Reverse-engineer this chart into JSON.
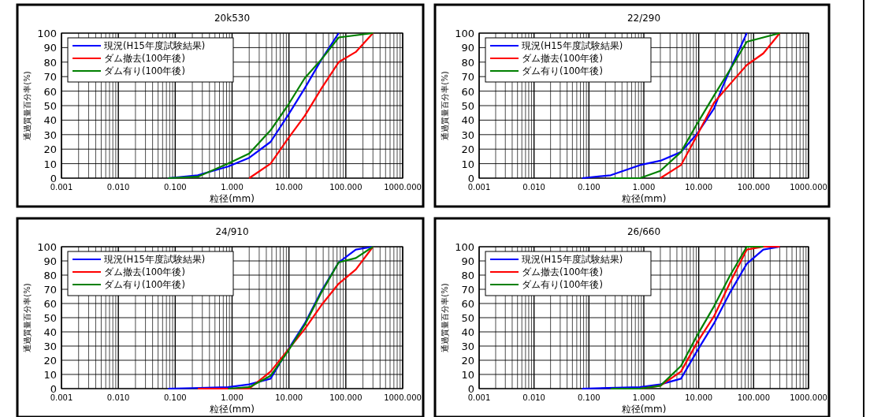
{
  "chart_data": [
    {
      "type": "line",
      "title": "20k530",
      "xlabel": "粒径(mm)",
      "ylabel": "通過質量百分率(%)",
      "log": "x",
      "grid": true,
      "legend": "top left",
      "xlim": [
        0.001,
        1000
      ],
      "xticks": [
        {
          "value": 0.001,
          "label": "0.001"
        },
        {
          "value": 0.01,
          "label": "0.010"
        },
        {
          "value": 0.1,
          "label": "0.100"
        },
        {
          "value": 1,
          "label": "1.000"
        },
        {
          "value": 10,
          "label": "10.000"
        },
        {
          "value": 100,
          "label": "100.000"
        },
        {
          "value": 1000,
          "label": "1000.000"
        }
      ],
      "ylim": [
        0,
        100
      ],
      "yticks": [
        0,
        10,
        20,
        30,
        40,
        50,
        60,
        70,
        80,
        90,
        100
      ],
      "series": [
        {
          "name": "現況(H15年度試験結果)",
          "color": "#0000ff",
          "x": [
            0.075,
            0.25,
            0.85,
            2,
            4.75,
            9.5,
            19,
            37.5,
            75
          ],
          "values": [
            0,
            2,
            8,
            14,
            25,
            43,
            62,
            82,
            100
          ]
        },
        {
          "name": "ダム撤去(100年後)",
          "color": "#ff0000",
          "x": [
            2,
            4.75,
            9.5,
            19,
            37.5,
            75,
            150,
            300
          ],
          "values": [
            0,
            10,
            27,
            43,
            62,
            80,
            87,
            100
          ]
        },
        {
          "name": "ダム有り(100年後)",
          "color": "#008000",
          "x": [
            0.075,
            0.25,
            0.85,
            2,
            4.75,
            9.5,
            19,
            37.5,
            75,
            300
          ],
          "values": [
            0,
            1,
            10,
            17,
            33,
            50,
            69,
            82,
            97,
            100
          ]
        }
      ]
    },
    {
      "type": "line",
      "title": "22/290",
      "xlabel": "粒径(mm)",
      "ylabel": "通過質量百分率(%)",
      "log": "x",
      "grid": true,
      "legend": "top left",
      "xlim": [
        0.001,
        1000
      ],
      "xticks": [
        {
          "value": 0.001,
          "label": "0.001"
        },
        {
          "value": 0.01,
          "label": "0.010"
        },
        {
          "value": 0.1,
          "label": "0.100"
        },
        {
          "value": 1,
          "label": "1.000"
        },
        {
          "value": 10,
          "label": "10.000"
        },
        {
          "value": 100,
          "label": "100.000"
        },
        {
          "value": 1000,
          "label": "1000.000"
        }
      ],
      "ylim": [
        0,
        100
      ],
      "yticks": [
        0,
        10,
        20,
        30,
        40,
        50,
        60,
        70,
        80,
        90,
        100
      ],
      "series": [
        {
          "name": "現況(H15年度試験結果)",
          "color": "#0000ff",
          "x": [
            0.075,
            0.25,
            0.85,
            2,
            4.75,
            9.5,
            19,
            26.5,
            37.5,
            75
          ],
          "values": [
            0,
            2,
            9,
            12,
            18,
            31,
            48,
            62,
            75,
            100
          ]
        },
        {
          "name": "ダム撤去(100年後)",
          "color": "#ff0000",
          "x": [
            2,
            4.75,
            9.5,
            19,
            37.5,
            75,
            150,
            300
          ],
          "values": [
            0,
            9,
            30,
            52,
            65,
            78,
            86,
            100
          ]
        },
        {
          "name": "ダム有り(100年後)",
          "color": "#008000",
          "x": [
            0.25,
            0.85,
            2,
            4.75,
            9.5,
            19,
            37.5,
            75,
            150,
            300
          ],
          "values": [
            0,
            0,
            5,
            18,
            38,
            57,
            75,
            94,
            97,
            100
          ]
        }
      ]
    },
    {
      "type": "line",
      "title": "24/910",
      "xlabel": "粒径(mm)",
      "ylabel": "通過質量百分率(%)",
      "log": "x",
      "grid": true,
      "legend": "top left",
      "xlim": [
        0.001,
        1000
      ],
      "xticks": [
        {
          "value": 0.001,
          "label": "0.001"
        },
        {
          "value": 0.01,
          "label": "0.010"
        },
        {
          "value": 0.1,
          "label": "0.100"
        },
        {
          "value": 1,
          "label": "1.000"
        },
        {
          "value": 10,
          "label": "10.000"
        },
        {
          "value": 100,
          "label": "100.000"
        },
        {
          "value": 1000,
          "label": "1000.000"
        }
      ],
      "ylim": [
        0,
        100
      ],
      "yticks": [
        0,
        10,
        20,
        30,
        40,
        50,
        60,
        70,
        80,
        90,
        100
      ],
      "series": [
        {
          "name": "現況(H15年度試験結果)",
          "color": "#0000ff",
          "x": [
            0.075,
            0.85,
            2,
            4.75,
            9.5,
            19,
            37.5,
            75,
            150,
            300
          ],
          "values": [
            0,
            1,
            3,
            7,
            27,
            46,
            69,
            89,
            98,
            100
          ]
        },
        {
          "name": "ダム撤去(100年後)",
          "color": "#ff0000",
          "x": [
            0.25,
            2,
            4.75,
            9.5,
            19,
            37.5,
            75,
            150,
            300
          ],
          "values": [
            0,
            0,
            12,
            27,
            42,
            59,
            74,
            84,
            100
          ]
        },
        {
          "name": "ダム有り(100年後)",
          "color": "#008000",
          "x": [
            0.85,
            2,
            4.75,
            9.5,
            19,
            37.5,
            75,
            150,
            300
          ],
          "values": [
            0,
            1,
            9,
            26,
            45,
            68,
            89,
            92,
            100
          ]
        }
      ]
    },
    {
      "type": "line",
      "title": "26/660",
      "xlabel": "粒径(mm)",
      "ylabel": "通過質量百分率(%)",
      "log": "x",
      "grid": true,
      "legend": "top left",
      "xlim": [
        0.001,
        1000
      ],
      "xticks": [
        {
          "value": 0.001,
          "label": "0.001"
        },
        {
          "value": 0.01,
          "label": "0.010"
        },
        {
          "value": 0.1,
          "label": "0.100"
        },
        {
          "value": 1,
          "label": "1.000"
        },
        {
          "value": 10,
          "label": "10.000"
        },
        {
          "value": 100,
          "label": "100.000"
        },
        {
          "value": 1000,
          "label": "1000.000"
        }
      ],
      "ylim": [
        0,
        100
      ],
      "yticks": [
        0,
        10,
        20,
        30,
        40,
        50,
        60,
        70,
        80,
        90,
        100
      ],
      "series": [
        {
          "name": "現況(H15年度試験結果)",
          "color": "#0000ff",
          "x": [
            0.075,
            0.85,
            2,
            4.75,
            9.5,
            19,
            37.5,
            75,
            150,
            300
          ],
          "values": [
            0,
            1,
            3,
            7,
            27,
            46,
            68,
            88,
            98,
            100
          ]
        },
        {
          "name": "ダム撤去(100年後)",
          "color": "#ff0000",
          "x": [
            0.25,
            0.85,
            2,
            4.75,
            9.5,
            19,
            37.5,
            75,
            150,
            300
          ],
          "values": [
            0,
            0,
            2,
            12,
            33,
            51,
            75,
            98,
            100,
            100
          ]
        },
        {
          "name": "ダム有り(100年後)",
          "color": "#008000",
          "x": [
            0.25,
            0.85,
            2,
            4.75,
            9.5,
            19,
            37.5,
            75,
            150
          ],
          "values": [
            0,
            0,
            2,
            16,
            38,
            58,
            80,
            100,
            100
          ]
        }
      ]
    }
  ]
}
